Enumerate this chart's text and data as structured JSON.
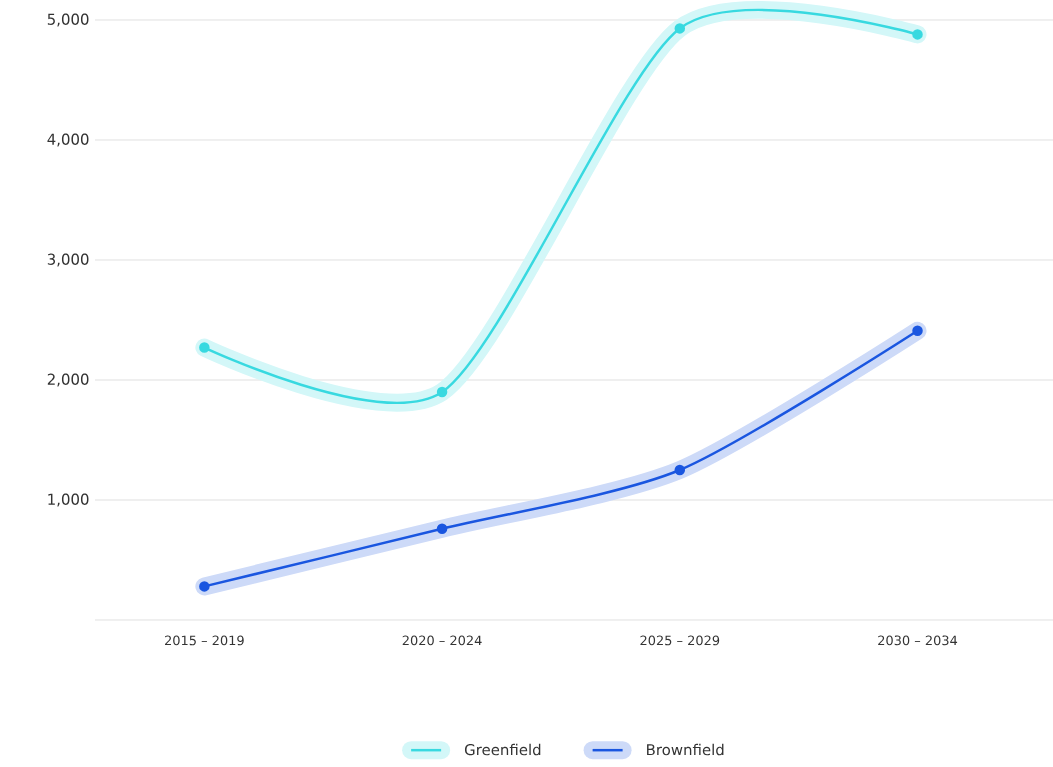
{
  "chart_data": {
    "type": "line",
    "categories": [
      "2015 – 2019",
      "2020 – 2024",
      "2025 – 2029",
      "2030 – 2034"
    ],
    "series": [
      {
        "name": "Greenfield",
        "color": "#38d9e0",
        "values": [
          2270,
          1900,
          4930,
          4880
        ]
      },
      {
        "name": "Brownfield",
        "color": "#1a56e0",
        "values": [
          280,
          760,
          1250,
          2410
        ]
      }
    ],
    "ylim": [
      0,
      5000
    ],
    "yticks": [
      {
        "value": 1000,
        "label": "1,000"
      },
      {
        "value": 2000,
        "label": "2,000"
      },
      {
        "value": 3000,
        "label": "3,000"
      },
      {
        "value": 4000,
        "label": "4,000"
      },
      {
        "value": 5000,
        "label": "5,000"
      }
    ],
    "grid": "y",
    "legend": "bottom",
    "marker": "circle",
    "line_style": "solid"
  }
}
